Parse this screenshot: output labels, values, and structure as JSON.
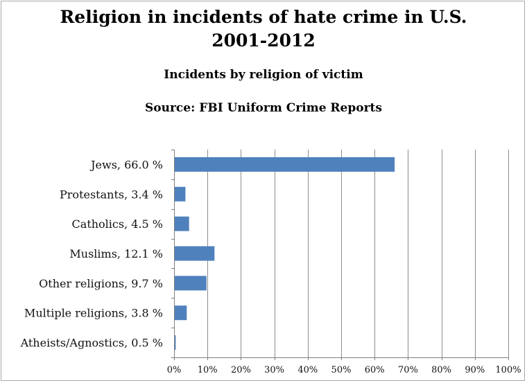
{
  "chart_data": {
    "type": "bar",
    "orientation": "horizontal",
    "title": "Religion in incidents of hate crime in U.S.",
    "title_line2": "2001-2012",
    "subtitle": "Incidents by religion of victim",
    "source": "Source: FBI Uniform Crime Reports",
    "categories": [
      "Jews, 66.0 %",
      "Protestants, 3.4 %",
      "Catholics, 4.5 %",
      "Muslims, 12.1 %",
      "Other religions, 9.7 %",
      "Multiple religions, 3.8 %",
      "Atheists/Agnostics, 0.5 %"
    ],
    "values": [
      66.0,
      3.4,
      4.5,
      12.1,
      9.7,
      3.8,
      0.5
    ],
    "xlim": [
      0,
      100
    ],
    "xticks": [
      "0%",
      "10%",
      "20%",
      "30%",
      "40%",
      "50%",
      "60%",
      "70%",
      "80%",
      "90%",
      "100%"
    ],
    "grid": true,
    "bar_color": "#4f81bd",
    "grid_color": "#8c8c8c"
  }
}
